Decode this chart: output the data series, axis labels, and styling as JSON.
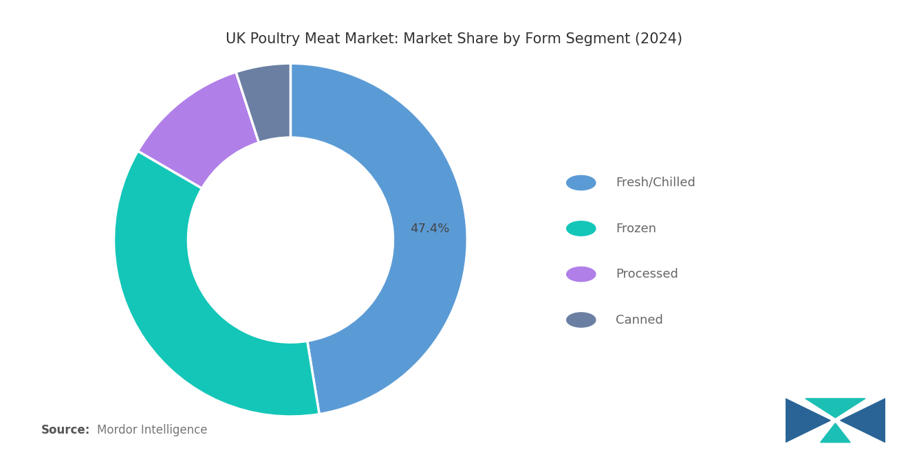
{
  "title": "UK Poultry Meat Market: Market Share by Form Segment (2024)",
  "segments": [
    "Fresh/Chilled",
    "Frozen",
    "Processed",
    "Canned"
  ],
  "values": [
    47.4,
    36.0,
    11.6,
    5.0
  ],
  "colors": [
    "#5B9BD5",
    "#13C6B8",
    "#B07FE8",
    "#6B7FA3"
  ],
  "label_text": "47.4%",
  "source_bold": "Source:",
  "source_normal": "  Mordor Intelligence",
  "background_color": "#ffffff",
  "title_fontsize": 15,
  "legend_fontsize": 13,
  "source_fontsize": 12,
  "donut_width": 0.42,
  "start_angle": 90
}
